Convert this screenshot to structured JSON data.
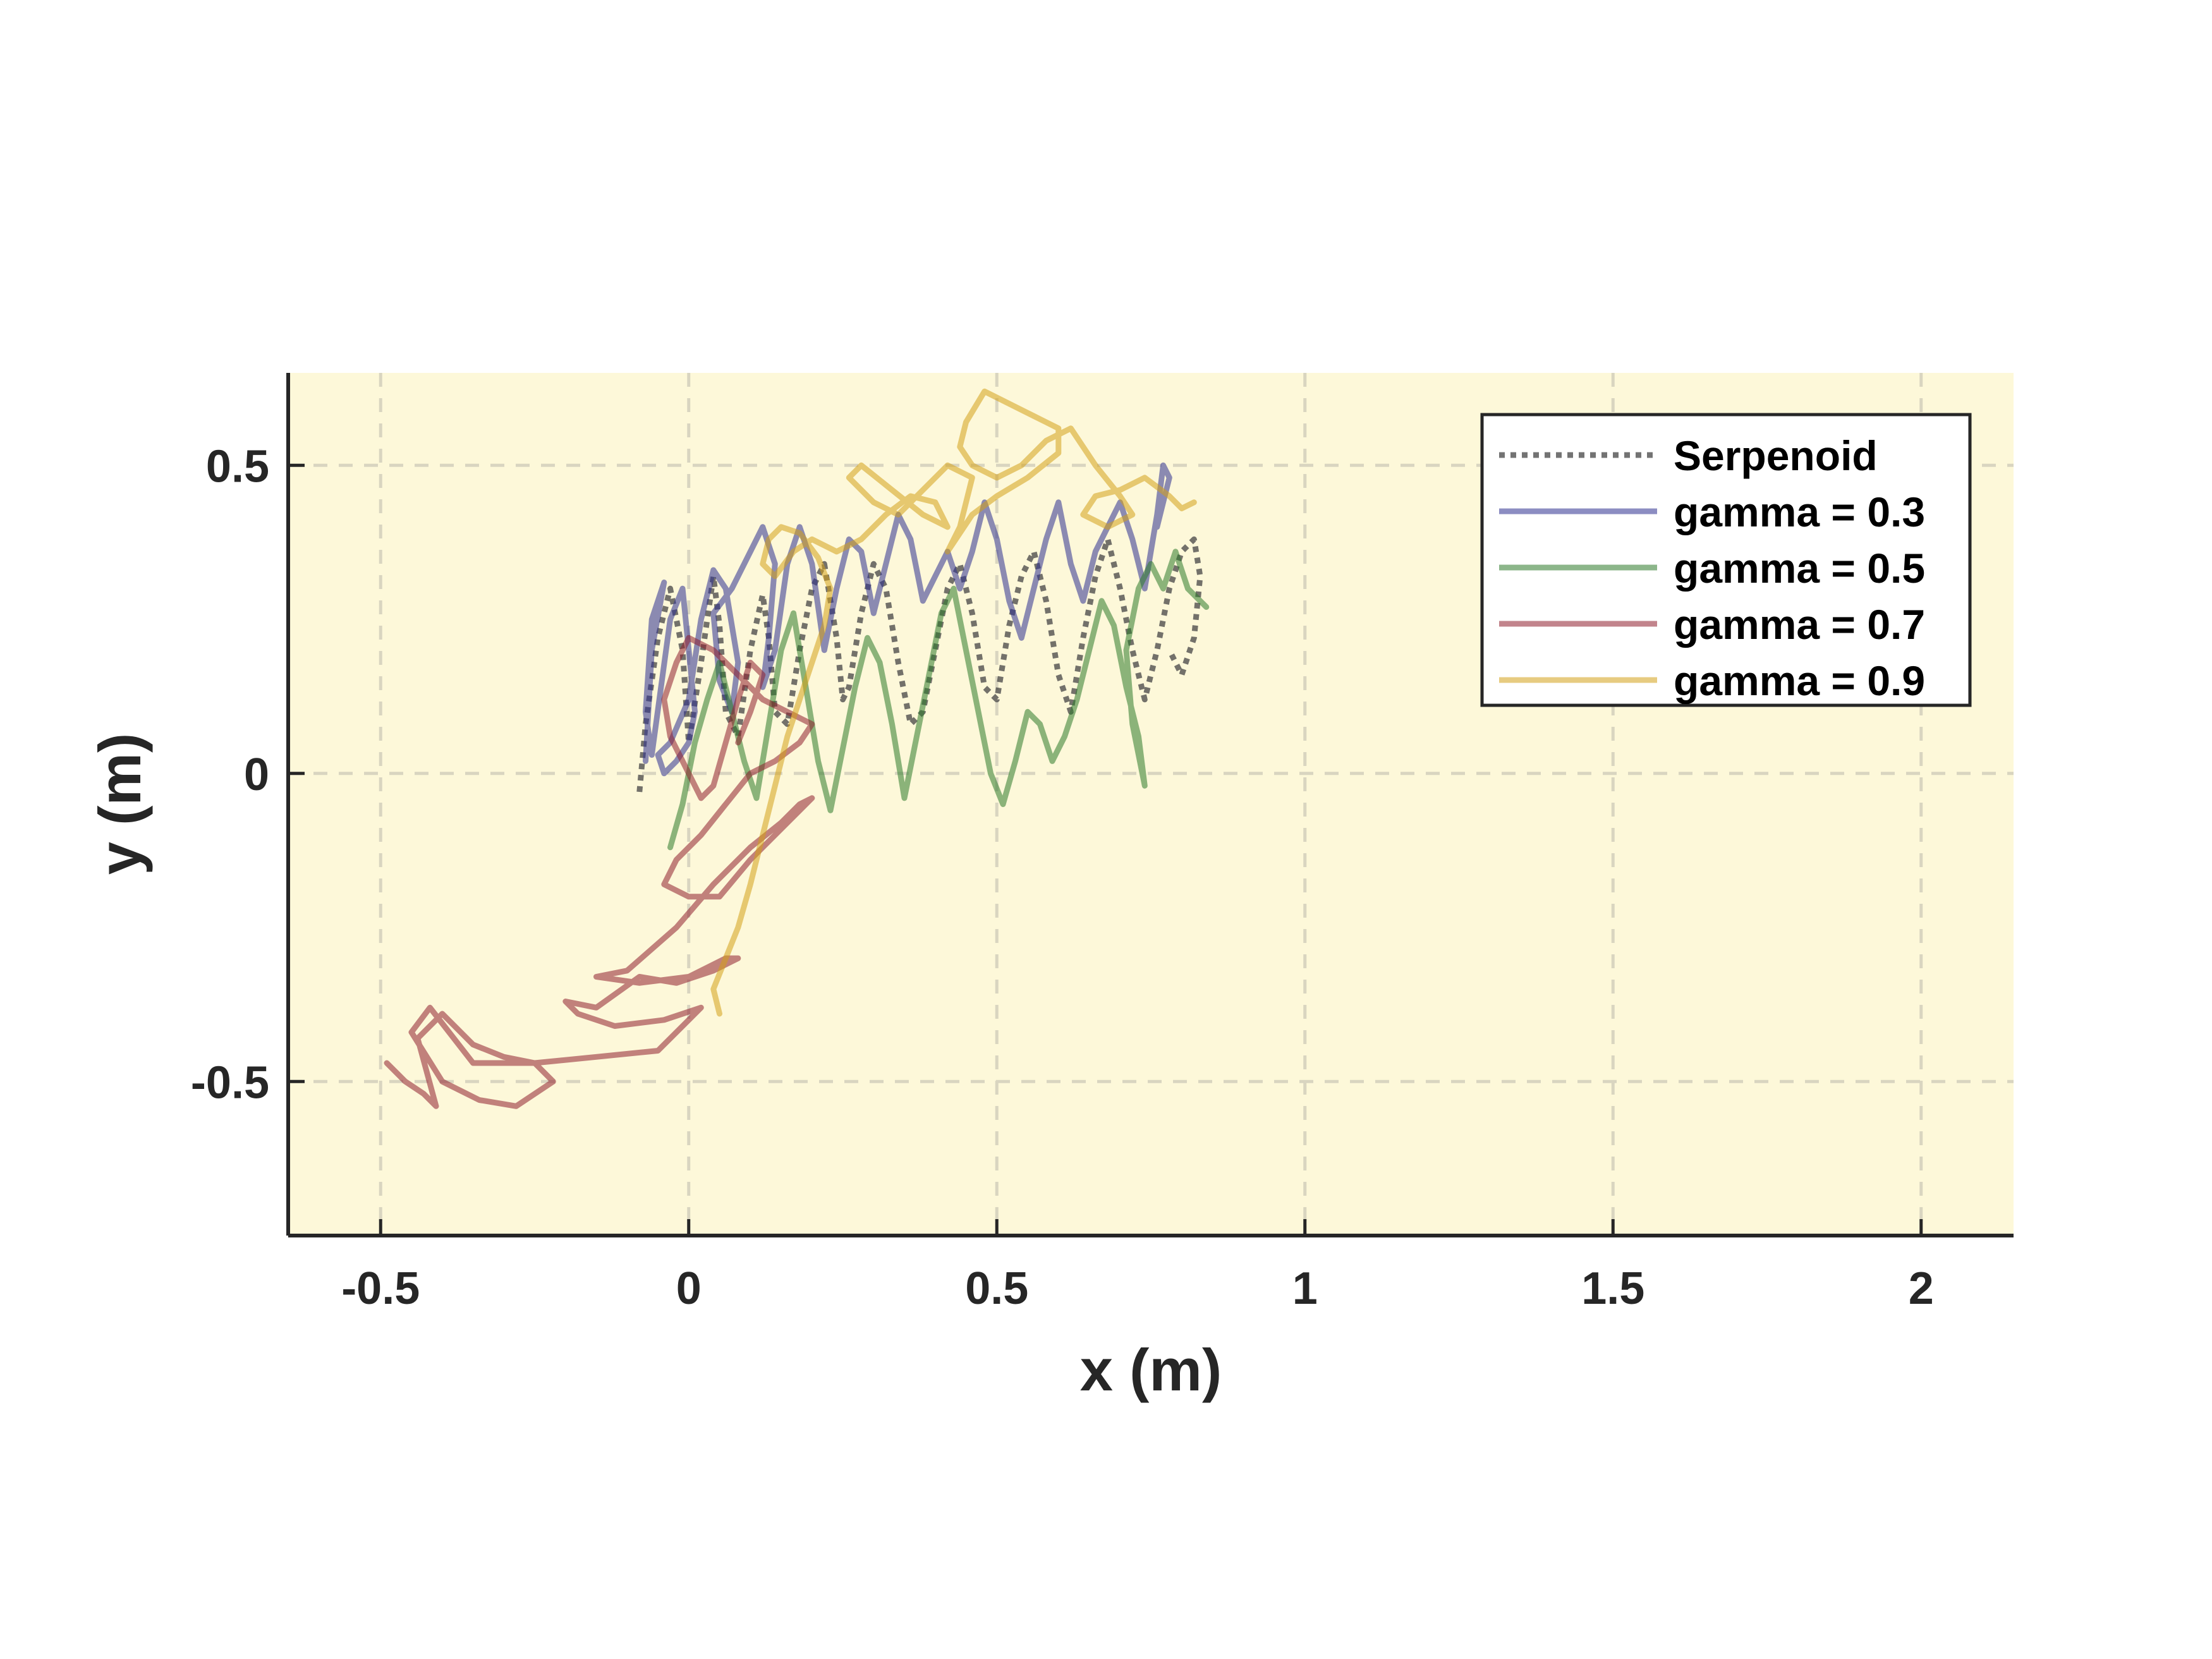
{
  "colors": {
    "plot_background": "#fdf8d9",
    "grid": "#d9d5c0",
    "axis": "#262626",
    "serpenoid": "#444444",
    "gamma_03": "#2d2f8f",
    "gamma_05": "#2d7a2a",
    "gamma_07": "#8f1f2e",
    "gamma_09": "#d4a017"
  },
  "chart_data": {
    "type": "line",
    "title": "",
    "xlabel": "x (m)",
    "ylabel": "y (m)",
    "xlim": [
      -0.65,
      2.15
    ],
    "ylim": [
      -0.75,
      0.65
    ],
    "xticks": [
      -0.5,
      0,
      0.5,
      1,
      1.5,
      2
    ],
    "xtick_labels": [
      "-0.5",
      "0",
      "0.5",
      "1",
      "1.5",
      "2"
    ],
    "yticks": [
      -0.5,
      0,
      0.5
    ],
    "ytick_labels": [
      "-0.5",
      "0",
      "0.5"
    ],
    "grid": true,
    "legend_position": "top-right",
    "series": [
      {
        "name": "Serpenoid",
        "style": "dotted",
        "color": "#444444",
        "x": [
          -0.08,
          -0.07,
          -0.05,
          -0.03,
          -0.01,
          0.0,
          0.02,
          0.04,
          0.05,
          0.06,
          0.08,
          0.1,
          0.12,
          0.13,
          0.14,
          0.16,
          0.18,
          0.2,
          0.22,
          0.24,
          0.25,
          0.26,
          0.28,
          0.3,
          0.32,
          0.34,
          0.36,
          0.38,
          0.4,
          0.42,
          0.44,
          0.46,
          0.48,
          0.5,
          0.52,
          0.54,
          0.56,
          0.58,
          0.6,
          0.62,
          0.64,
          0.66,
          0.68,
          0.7,
          0.72,
          0.74,
          0.76,
          0.78,
          0.8,
          0.82,
          0.83,
          0.82,
          0.8,
          0.78
        ],
        "y": [
          -0.03,
          0.08,
          0.22,
          0.3,
          0.2,
          0.05,
          0.18,
          0.32,
          0.24,
          0.1,
          0.06,
          0.2,
          0.29,
          0.22,
          0.1,
          0.08,
          0.2,
          0.3,
          0.34,
          0.22,
          0.12,
          0.14,
          0.26,
          0.34,
          0.3,
          0.18,
          0.08,
          0.1,
          0.2,
          0.3,
          0.34,
          0.26,
          0.14,
          0.12,
          0.24,
          0.32,
          0.36,
          0.28,
          0.16,
          0.1,
          0.22,
          0.32,
          0.38,
          0.3,
          0.2,
          0.12,
          0.2,
          0.3,
          0.36,
          0.38,
          0.32,
          0.22,
          0.16,
          0.2
        ]
      },
      {
        "name": "gamma = 0.3",
        "style": "solid",
        "color": "#2d2f8f",
        "x": [
          -0.07,
          -0.06,
          -0.04,
          -0.06,
          -0.07,
          -0.06,
          -0.03,
          -0.01,
          0.0,
          0.01,
          0.0,
          -0.02,
          -0.04,
          -0.05,
          -0.03,
          0.0,
          0.02,
          0.04,
          0.06,
          0.08,
          0.07,
          0.05,
          0.04,
          0.07,
          0.1,
          0.12,
          0.14,
          0.13,
          0.12,
          0.14,
          0.16,
          0.18,
          0.2,
          0.22,
          0.24,
          0.26,
          0.28,
          0.3,
          0.32,
          0.34,
          0.36,
          0.38,
          0.4,
          0.42,
          0.44,
          0.46,
          0.48,
          0.5,
          0.52,
          0.54,
          0.56,
          0.58,
          0.6,
          0.62,
          0.64,
          0.66,
          0.68,
          0.7,
          0.72,
          0.74,
          0.75,
          0.76,
          0.77,
          0.78,
          0.77,
          0.76
        ],
        "y": [
          0.02,
          0.2,
          0.31,
          0.25,
          0.1,
          0.03,
          0.25,
          0.3,
          0.2,
          0.1,
          0.05,
          0.02,
          0.0,
          0.03,
          0.05,
          0.12,
          0.25,
          0.33,
          0.3,
          0.18,
          0.1,
          0.15,
          0.26,
          0.3,
          0.36,
          0.4,
          0.34,
          0.22,
          0.14,
          0.2,
          0.34,
          0.4,
          0.34,
          0.2,
          0.3,
          0.38,
          0.36,
          0.26,
          0.34,
          0.42,
          0.38,
          0.28,
          0.32,
          0.36,
          0.3,
          0.36,
          0.44,
          0.38,
          0.28,
          0.22,
          0.3,
          0.38,
          0.44,
          0.34,
          0.28,
          0.36,
          0.4,
          0.44,
          0.38,
          0.3,
          0.36,
          0.42,
          0.5,
          0.48,
          0.44,
          0.4
        ]
      },
      {
        "name": "gamma = 0.5",
        "style": "solid",
        "color": "#2d7a2a",
        "x": [
          -0.03,
          -0.01,
          0.01,
          0.03,
          0.05,
          0.07,
          0.09,
          0.11,
          0.13,
          0.15,
          0.17,
          0.19,
          0.21,
          0.23,
          0.25,
          0.27,
          0.29,
          0.31,
          0.33,
          0.35,
          0.37,
          0.39,
          0.41,
          0.43,
          0.45,
          0.47,
          0.49,
          0.51,
          0.53,
          0.55,
          0.57,
          0.59,
          0.61,
          0.63,
          0.65,
          0.67,
          0.69,
          0.71,
          0.73,
          0.74,
          0.72,
          0.71,
          0.73,
          0.75,
          0.77,
          0.79,
          0.81,
          0.83,
          0.84
        ],
        "y": [
          -0.12,
          -0.05,
          0.05,
          0.12,
          0.18,
          0.1,
          0.02,
          -0.04,
          0.08,
          0.2,
          0.26,
          0.14,
          0.02,
          -0.06,
          0.04,
          0.14,
          0.22,
          0.18,
          0.08,
          -0.04,
          0.06,
          0.16,
          0.26,
          0.3,
          0.2,
          0.1,
          0.0,
          -0.05,
          0.02,
          0.1,
          0.08,
          0.02,
          0.06,
          0.12,
          0.2,
          0.28,
          0.24,
          0.14,
          0.06,
          -0.02,
          0.08,
          0.2,
          0.3,
          0.34,
          0.3,
          0.36,
          0.3,
          0.28,
          0.27
        ]
      },
      {
        "name": "gamma = 0.7",
        "style": "solid",
        "color": "#8f1f2e",
        "x": [
          -0.49,
          -0.46,
          -0.43,
          -0.41,
          -0.44,
          -0.4,
          -0.35,
          -0.3,
          -0.25,
          -0.22,
          -0.28,
          -0.34,
          -0.4,
          -0.45,
          -0.42,
          -0.35,
          -0.25,
          -0.15,
          -0.05,
          0.0,
          0.02,
          -0.04,
          -0.12,
          -0.18,
          -0.2,
          -0.15,
          -0.08,
          -0.02,
          0.04,
          0.08,
          0.06,
          0.0,
          -0.08,
          -0.15,
          -0.1,
          -0.02,
          0.04,
          0.1,
          0.15,
          0.18,
          0.2,
          0.16,
          0.1,
          0.05,
          0.0,
          -0.04,
          -0.02,
          0.02,
          0.06,
          0.1,
          0.14,
          0.18,
          0.2,
          0.16,
          0.12,
          0.08,
          0.04,
          0.0,
          -0.02,
          -0.04,
          -0.03,
          0.0,
          0.02,
          0.04,
          0.06,
          0.08,
          0.1,
          0.12,
          0.1,
          0.08
        ],
        "y": [
          -0.47,
          -0.5,
          -0.52,
          -0.54,
          -0.43,
          -0.39,
          -0.44,
          -0.46,
          -0.47,
          -0.5,
          -0.54,
          -0.53,
          -0.5,
          -0.42,
          -0.38,
          -0.47,
          -0.47,
          -0.46,
          -0.45,
          -0.4,
          -0.38,
          -0.4,
          -0.41,
          -0.39,
          -0.37,
          -0.38,
          -0.33,
          -0.34,
          -0.32,
          -0.3,
          -0.3,
          -0.33,
          -0.34,
          -0.33,
          -0.32,
          -0.25,
          -0.18,
          -0.12,
          -0.08,
          -0.05,
          -0.04,
          -0.08,
          -0.14,
          -0.2,
          -0.2,
          -0.18,
          -0.14,
          -0.1,
          -0.05,
          0.0,
          0.02,
          0.05,
          0.08,
          0.1,
          0.12,
          0.16,
          0.2,
          0.22,
          0.18,
          0.12,
          0.06,
          0.0,
          -0.04,
          -0.02,
          0.05,
          0.12,
          0.18,
          0.16,
          0.1,
          0.05
        ]
      },
      {
        "name": "gamma = 0.9",
        "style": "solid",
        "color": "#d4a017",
        "x": [
          0.05,
          0.04,
          0.06,
          0.08,
          0.1,
          0.12,
          0.14,
          0.16,
          0.18,
          0.2,
          0.22,
          0.23,
          0.21,
          0.18,
          0.15,
          0.13,
          0.12,
          0.14,
          0.17,
          0.2,
          0.24,
          0.28,
          0.32,
          0.36,
          0.4,
          0.42,
          0.38,
          0.33,
          0.28,
          0.26,
          0.3,
          0.34,
          0.38,
          0.42,
          0.46,
          0.44,
          0.42,
          0.46,
          0.5,
          0.55,
          0.6,
          0.6,
          0.56,
          0.52,
          0.48,
          0.45,
          0.44,
          0.46,
          0.5,
          0.54,
          0.58,
          0.62,
          0.66,
          0.7,
          0.72,
          0.68,
          0.64,
          0.66,
          0.7,
          0.74,
          0.78,
          0.8,
          0.82
        ],
        "y": [
          -0.39,
          -0.35,
          -0.3,
          -0.25,
          -0.18,
          -0.1,
          -0.02,
          0.06,
          0.12,
          0.18,
          0.24,
          0.3,
          0.35,
          0.39,
          0.4,
          0.38,
          0.34,
          0.32,
          0.36,
          0.38,
          0.36,
          0.38,
          0.42,
          0.45,
          0.44,
          0.4,
          0.42,
          0.46,
          0.5,
          0.48,
          0.44,
          0.42,
          0.46,
          0.5,
          0.48,
          0.4,
          0.36,
          0.42,
          0.45,
          0.48,
          0.52,
          0.56,
          0.58,
          0.6,
          0.62,
          0.57,
          0.53,
          0.5,
          0.48,
          0.5,
          0.54,
          0.56,
          0.5,
          0.45,
          0.42,
          0.4,
          0.42,
          0.45,
          0.46,
          0.48,
          0.45,
          0.43,
          0.44
        ]
      }
    ]
  }
}
